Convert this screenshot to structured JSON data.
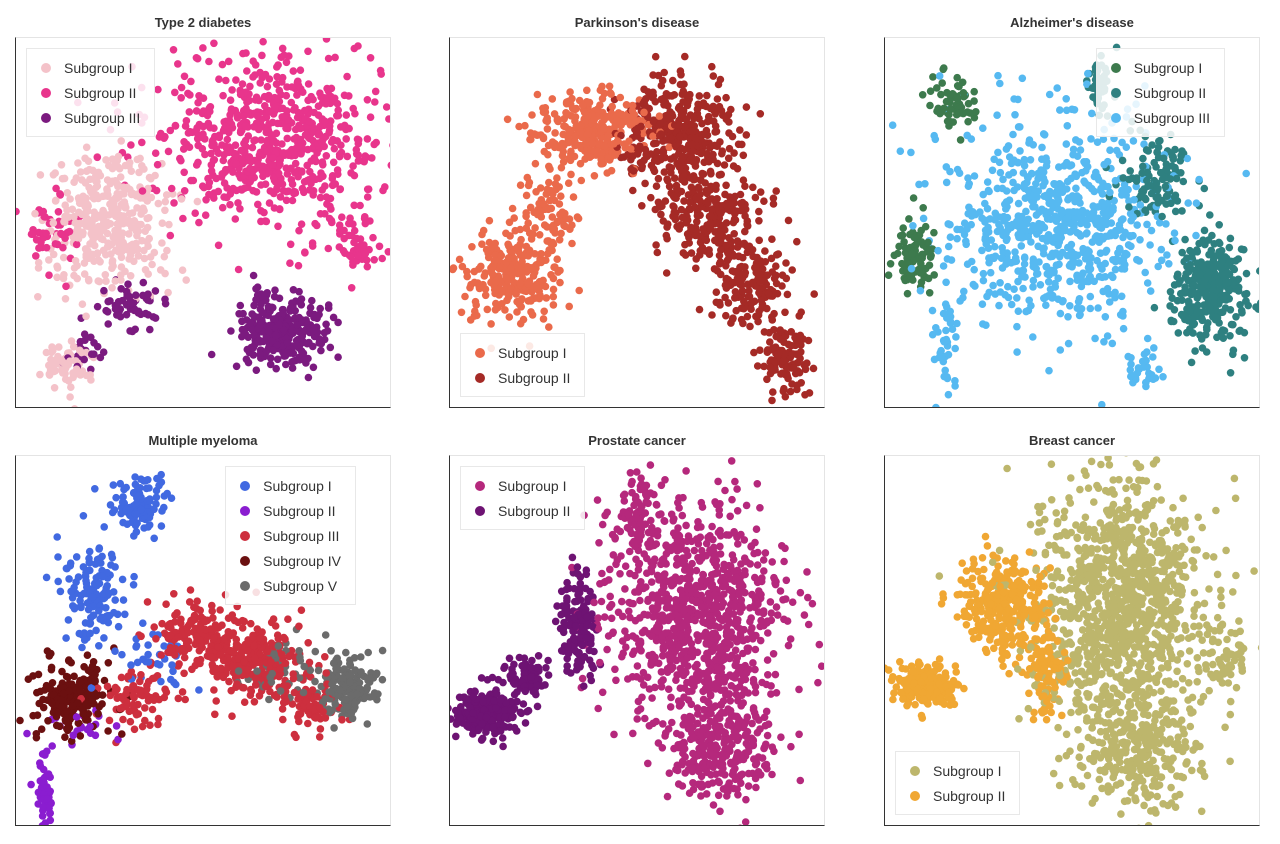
{
  "chart_data": [
    {
      "type": "scatter",
      "title": "Type 2 diabetes",
      "legend_position": "top-left",
      "xlim": [
        0,
        100
      ],
      "ylim": [
        0,
        100
      ],
      "series": [
        {
          "name": "Subgroup I",
          "color": "#f4c2c9",
          "clusters": [
            {
              "cx": 24,
              "cy": 50,
              "sx": 9,
              "sy": 11,
              "n": 380
            },
            {
              "cx": 14,
              "cy": 12,
              "sx": 4,
              "sy": 4,
              "n": 60
            }
          ]
        },
        {
          "name": "Subgroup II",
          "color": "#e8358c",
          "clusters": [
            {
              "cx": 68,
              "cy": 72,
              "sx": 17,
              "sy": 14,
              "n": 700
            },
            {
              "cx": 9,
              "cy": 48,
              "sx": 4,
              "sy": 5,
              "n": 50
            },
            {
              "cx": 90,
              "cy": 45,
              "sx": 4,
              "sy": 5,
              "n": 50
            }
          ]
        },
        {
          "name": "Subgroup III",
          "color": "#7b1a7f",
          "clusters": [
            {
              "cx": 71,
              "cy": 21,
              "sx": 7,
              "sy": 6,
              "n": 300
            },
            {
              "cx": 30,
              "cy": 27,
              "sx": 5,
              "sy": 4,
              "n": 60
            },
            {
              "cx": 18,
              "cy": 15,
              "sx": 3,
              "sy": 3,
              "n": 20
            }
          ]
        }
      ]
    },
    {
      "type": "scatter",
      "title": "Parkinson's disease",
      "legend_position": "bottom-left",
      "xlim": [
        0,
        100
      ],
      "ylim": [
        0,
        100
      ],
      "series": [
        {
          "name": "Subgroup I",
          "color": "#ea6a4b",
          "clusters": [
            {
              "cx": 38,
              "cy": 75,
              "sx": 9,
              "sy": 6,
              "n": 300
            },
            {
              "cx": 16,
              "cy": 36,
              "sx": 7,
              "sy": 7,
              "n": 260
            },
            {
              "cx": 26,
              "cy": 55,
              "sx": 5,
              "sy": 6,
              "n": 70
            }
          ]
        },
        {
          "name": "Subgroup II",
          "color": "#a52a26",
          "clusters": [
            {
              "cx": 61,
              "cy": 74,
              "sx": 9,
              "sy": 9,
              "n": 380
            },
            {
              "cx": 69,
              "cy": 52,
              "sx": 8,
              "sy": 7,
              "n": 200
            },
            {
              "cx": 80,
              "cy": 34,
              "sx": 6,
              "sy": 7,
              "n": 160
            },
            {
              "cx": 89,
              "cy": 14,
              "sx": 4,
              "sy": 6,
              "n": 110
            }
          ]
        }
      ]
    },
    {
      "type": "scatter",
      "title": "Alzheimer's disease",
      "legend_position": "top-right",
      "xlim": [
        0,
        100
      ],
      "ylim": [
        0,
        100
      ],
      "series": [
        {
          "name": "Subgroup I",
          "color": "#3d7a4d",
          "clusters": [
            {
              "cx": 18,
              "cy": 83,
              "sx": 4,
              "sy": 4,
              "n": 60
            },
            {
              "cx": 8,
              "cy": 40,
              "sx": 3,
              "sy": 6,
              "n": 90
            }
          ]
        },
        {
          "name": "Subgroup II",
          "color": "#2e8080",
          "clusters": [
            {
              "cx": 86,
              "cy": 32,
              "sx": 6,
              "sy": 8,
              "n": 320
            },
            {
              "cx": 57,
              "cy": 87,
              "sx": 2,
              "sy": 5,
              "n": 50
            },
            {
              "cx": 72,
              "cy": 62,
              "sx": 6,
              "sy": 7,
              "n": 110
            }
          ]
        },
        {
          "name": "Subgroup III",
          "color": "#56b9f1",
          "clusters": [
            {
              "cx": 46,
              "cy": 50,
              "sx": 18,
              "sy": 16,
              "n": 720
            },
            {
              "cx": 16,
              "cy": 16,
              "sx": 2,
              "sy": 8,
              "n": 40
            },
            {
              "cx": 68,
              "cy": 10,
              "sx": 3,
              "sy": 3,
              "n": 30
            }
          ]
        }
      ]
    },
    {
      "type": "scatter",
      "title": "Multiple myeloma",
      "legend_position": "top-right",
      "xlim": [
        0,
        100
      ],
      "ylim": [
        0,
        100
      ],
      "series": [
        {
          "name": "Subgroup I",
          "color": "#4169e1",
          "clusters": [
            {
              "cx": 33,
              "cy": 87,
              "sx": 4,
              "sy": 5,
              "n": 100
            },
            {
              "cx": 21,
              "cy": 63,
              "sx": 5,
              "sy": 8,
              "n": 140
            },
            {
              "cx": 36,
              "cy": 45,
              "sx": 6,
              "sy": 5,
              "n": 30
            }
          ]
        },
        {
          "name": "Subgroup II",
          "color": "#8a1dd0",
          "clusters": [
            {
              "cx": 8,
              "cy": 10,
              "sx": 1.5,
              "sy": 7,
              "n": 50
            },
            {
              "cx": 18,
              "cy": 27,
              "sx": 5,
              "sy": 3,
              "n": 20
            }
          ]
        },
        {
          "name": "Subgroup III",
          "color": "#cd2f3e",
          "clusters": [
            {
              "cx": 47,
              "cy": 52,
              "sx": 6,
              "sy": 5,
              "n": 150
            },
            {
              "cx": 63,
              "cy": 44,
              "sx": 8,
              "sy": 6,
              "n": 250
            },
            {
              "cx": 32,
              "cy": 35,
              "sx": 5,
              "sy": 5,
              "n": 80
            },
            {
              "cx": 78,
              "cy": 33,
              "sx": 5,
              "sy": 4,
              "n": 70
            }
          ]
        },
        {
          "name": "Subgroup IV",
          "color": "#6b1010",
          "clusters": [
            {
              "cx": 15,
              "cy": 35,
              "sx": 6,
              "sy": 6,
              "n": 200
            }
          ]
        },
        {
          "name": "Subgroup V",
          "color": "#6b6b6b",
          "clusters": [
            {
              "cx": 88,
              "cy": 38,
              "sx": 5,
              "sy": 5,
              "n": 160
            },
            {
              "cx": 70,
              "cy": 42,
              "sx": 6,
              "sy": 5,
              "n": 50
            }
          ]
        }
      ]
    },
    {
      "type": "scatter",
      "title": "Prostate cancer",
      "legend_position": "top-left",
      "xlim": [
        0,
        100
      ],
      "ylim": [
        0,
        100
      ],
      "series": [
        {
          "name": "Subgroup I",
          "color": "#b5287c",
          "clusters": [
            {
              "cx": 65,
              "cy": 58,
              "sx": 14,
              "sy": 17,
              "n": 900
            },
            {
              "cx": 72,
              "cy": 22,
              "sx": 8,
              "sy": 10,
              "n": 300
            },
            {
              "cx": 50,
              "cy": 85,
              "sx": 3,
              "sy": 6,
              "n": 60
            }
          ]
        },
        {
          "name": "Subgroup II",
          "color": "#6e1373",
          "clusters": [
            {
              "cx": 9,
              "cy": 31,
              "sx": 5,
              "sy": 3.5,
              "n": 260
            },
            {
              "cx": 21,
              "cy": 40,
              "sx": 4,
              "sy": 3,
              "n": 80
            },
            {
              "cx": 34,
              "cy": 55,
              "sx": 3,
              "sy": 8,
              "n": 150
            }
          ]
        }
      ]
    },
    {
      "type": "scatter",
      "title": "Breast cancer",
      "legend_position": "bottom-left",
      "xlim": [
        0,
        100
      ],
      "ylim": [
        0,
        100
      ],
      "series": [
        {
          "name": "Subgroup I",
          "color": "#bdb66c",
          "clusters": [
            {
              "cx": 63,
              "cy": 60,
              "sx": 13,
              "sy": 20,
              "n": 1100
            },
            {
              "cx": 68,
              "cy": 20,
              "sx": 10,
              "sy": 9,
              "n": 300
            },
            {
              "cx": 90,
              "cy": 46,
              "sx": 4,
              "sy": 6,
              "n": 60
            }
          ]
        },
        {
          "name": "Subgroup II",
          "color": "#f0a733",
          "clusters": [
            {
              "cx": 11,
              "cy": 38,
              "sx": 5,
              "sy": 3,
              "n": 220
            },
            {
              "cx": 32,
              "cy": 60,
              "sx": 7,
              "sy": 7,
              "n": 300
            },
            {
              "cx": 43,
              "cy": 42,
              "sx": 3,
              "sy": 8,
              "n": 100
            }
          ]
        }
      ]
    }
  ]
}
